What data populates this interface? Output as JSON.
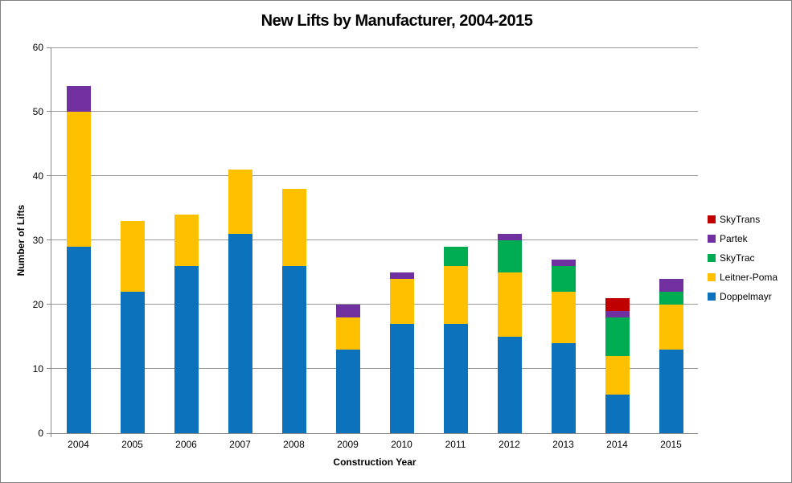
{
  "window": {
    "background": "#FFFFFF",
    "border_color": "#808080"
  },
  "chart_data": {
    "type": "bar",
    "stacked": true,
    "title": "New Lifts by Manufacturer, 2004-2015",
    "xlabel": "Construction Year",
    "ylabel": "Number of Lifts",
    "ylim": [
      0,
      60
    ],
    "yticks": [
      0,
      10,
      20,
      30,
      40,
      50,
      60
    ],
    "grid": true,
    "legend_position": "right",
    "legend_order_top_to_bottom": [
      "SkyTrans",
      "Partek",
      "SkyTrac",
      "Leitner-Poma",
      "Doppelmayr"
    ],
    "categories": [
      "2004",
      "2005",
      "2006",
      "2007",
      "2008",
      "2009",
      "2010",
      "2011",
      "2012",
      "2013",
      "2014",
      "2015"
    ],
    "series": [
      {
        "name": "Doppelmayr",
        "color": "#0D72BC",
        "values": [
          29,
          22,
          26,
          31,
          26,
          13,
          17,
          17,
          15,
          14,
          6,
          13
        ]
      },
      {
        "name": "Leitner-Poma",
        "color": "#FFC000",
        "values": [
          21,
          11,
          8,
          10,
          12,
          5,
          7,
          9,
          10,
          8,
          6,
          7
        ]
      },
      {
        "name": "SkyTrac",
        "color": "#00AC52",
        "values": [
          0,
          0,
          0,
          0,
          0,
          0,
          0,
          3,
          5,
          4,
          6,
          2
        ]
      },
      {
        "name": "Partek",
        "color": "#7030A0",
        "values": [
          4,
          0,
          0,
          0,
          0,
          2,
          1,
          0,
          1,
          1,
          1,
          2
        ]
      },
      {
        "name": "SkyTrans",
        "color": "#C00000",
        "values": [
          0,
          0,
          0,
          0,
          0,
          0,
          0,
          0,
          0,
          0,
          2,
          0
        ]
      }
    ],
    "totals": [
      54,
      33,
      34,
      41,
      38,
      20,
      25,
      29,
      31,
      27,
      21,
      24
    ],
    "gridline_color": "#989898",
    "axis_color": "#898989",
    "text_color": "#000000"
  }
}
